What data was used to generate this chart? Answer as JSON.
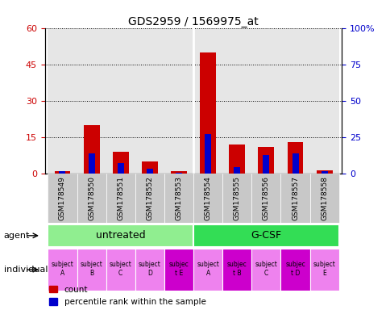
{
  "title": "GDS2959 / 1569975_at",
  "samples": [
    "GSM178549",
    "GSM178550",
    "GSM178551",
    "GSM178552",
    "GSM178553",
    "GSM178554",
    "GSM178555",
    "GSM178556",
    "GSM178557",
    "GSM178558"
  ],
  "count_values": [
    1.0,
    20.0,
    9.0,
    5.0,
    1.0,
    50.0,
    12.0,
    11.0,
    13.0,
    1.5
  ],
  "percentile_values": [
    1.5,
    14.0,
    7.5,
    3.5,
    0.8,
    27.0,
    4.5,
    13.0,
    14.0,
    1.5
  ],
  "ylim_left": [
    0,
    60
  ],
  "ylim_right": [
    0,
    100
  ],
  "yticks_left": [
    0,
    15,
    30,
    45,
    60
  ],
  "ytick_labels_left": [
    "0",
    "15",
    "30",
    "45",
    "60"
  ],
  "yticks_right": [
    0,
    25,
    50,
    75,
    100
  ],
  "ytick_labels_right": [
    "0",
    "25",
    "50",
    "75",
    "100%"
  ],
  "agent_untreated_label": "untreated",
  "agent_gcsf_label": "G-CSF",
  "agent_untreated_color": "#90ee90",
  "agent_gcsf_color": "#33dd55",
  "individual_labels": [
    "subject\nA",
    "subject\nB",
    "subject\nC",
    "subject\nD",
    "subjec\nt E",
    "subject\nA",
    "subjec\nt B",
    "subject\nC",
    "subjec\nt D",
    "subject\nE"
  ],
  "individual_highlight": [
    4,
    6,
    8
  ],
  "individual_color_normal": "#ee82ee",
  "individual_color_highlight": "#cc00cc",
  "bar_color_count": "#cc0000",
  "bar_color_percentile": "#0000cc",
  "bg_color": "#ffffff",
  "tick_color_left": "#cc0000",
  "tick_color_right": "#0000cc",
  "legend_count_label": "count",
  "legend_percentile_label": "percentile rank within the sample",
  "col_bg_color": "#cccccc",
  "n_untreated": 5,
  "n_gcsf": 5
}
